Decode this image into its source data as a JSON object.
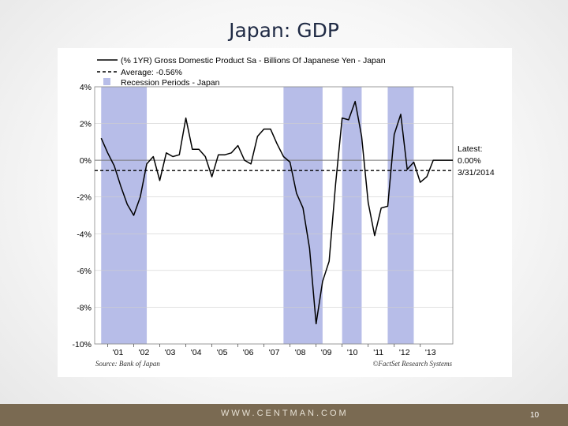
{
  "slide": {
    "title": "Japan: GDP",
    "footer_url": "WWW.CENTMAN.COM",
    "page_number": "10"
  },
  "colors": {
    "recession": "#b7bde8",
    "line": "#000000",
    "footer": "#7a6a52"
  },
  "chart_data": {
    "type": "line",
    "x_unit": "year",
    "legend": [
      {
        "label": "(% 1YR) Gross Domestic Product Sa - Billions Of Japanese Yen - Japan",
        "style": "solid-line"
      },
      {
        "label": "Average: -0.56%",
        "style": "dashed-line"
      },
      {
        "label": "Recession Periods - Japan",
        "style": "swatch"
      }
    ],
    "legend_position": "top-left",
    "ylim": [
      -10,
      4
    ],
    "yticks": [
      4,
      2,
      0,
      -2,
      -4,
      -6,
      -8,
      -10
    ],
    "ytick_labels": [
      "4%",
      "2%",
      "0%",
      "-2%",
      "-4%",
      "-6%",
      "-8%",
      "-10%"
    ],
    "xlim": [
      2000.5,
      2014.25
    ],
    "xticks": [
      2001,
      2002,
      2003,
      2004,
      2005,
      2006,
      2007,
      2008,
      2009,
      2010,
      2011,
      2012,
      2013
    ],
    "xtick_labels": [
      "'01",
      "'02",
      "'03",
      "'04",
      "'05",
      "'06",
      "'07",
      "'08",
      "'09",
      "'10",
      "'11",
      "'12",
      "'13"
    ],
    "recessions": [
      [
        2000.75,
        2002.5
      ],
      [
        2007.75,
        2009.25
      ],
      [
        2010.0,
        2010.75
      ],
      [
        2011.75,
        2012.75
      ]
    ],
    "average": -0.56,
    "series": [
      {
        "x": [
          2000.75,
          2001.0,
          2001.25,
          2001.5,
          2001.75,
          2002.0,
          2002.25,
          2002.5,
          2002.75,
          2003.0,
          2003.25,
          2003.5,
          2003.75,
          2004.0,
          2004.25,
          2004.5,
          2004.75,
          2005.0,
          2005.25,
          2005.5,
          2005.75,
          2006.0,
          2006.25,
          2006.5,
          2006.75,
          2007.0,
          2007.25,
          2007.5,
          2007.75,
          2008.0,
          2008.25,
          2008.5,
          2008.75,
          2009.0,
          2009.25,
          2009.5,
          2009.75,
          2010.0,
          2010.25,
          2010.5,
          2010.75,
          2011.0,
          2011.25,
          2011.5,
          2011.75,
          2012.0,
          2012.25,
          2012.5,
          2012.75,
          2013.0,
          2013.25,
          2013.5,
          2013.75,
          2014.0,
          2014.25
        ],
        "y": [
          1.2,
          0.4,
          -0.3,
          -1.4,
          -2.4,
          -3.0,
          -2.0,
          -0.2,
          0.2,
          -1.1,
          0.4,
          0.2,
          0.3,
          2.3,
          0.6,
          0.6,
          0.2,
          -0.9,
          0.3,
          0.3,
          0.4,
          0.8,
          0.0,
          -0.2,
          1.3,
          1.7,
          1.7,
          0.9,
          0.2,
          -0.1,
          -1.8,
          -2.6,
          -4.8,
          -8.9,
          -6.6,
          -5.5,
          -1.3,
          2.3,
          2.2,
          3.2,
          1.3,
          -2.3,
          -4.1,
          -2.6,
          -2.5,
          1.4,
          2.5,
          -0.5,
          -0.1,
          -1.2,
          -0.9,
          0.0,
          0.0,
          0.0,
          0.0
        ]
      }
    ],
    "annotations": {
      "latest_label": "Latest:",
      "latest_value": "0.00%",
      "latest_date": "3/31/2014",
      "source": "Source: Bank of Japan",
      "credit": "©FactSet Research Systems"
    }
  }
}
